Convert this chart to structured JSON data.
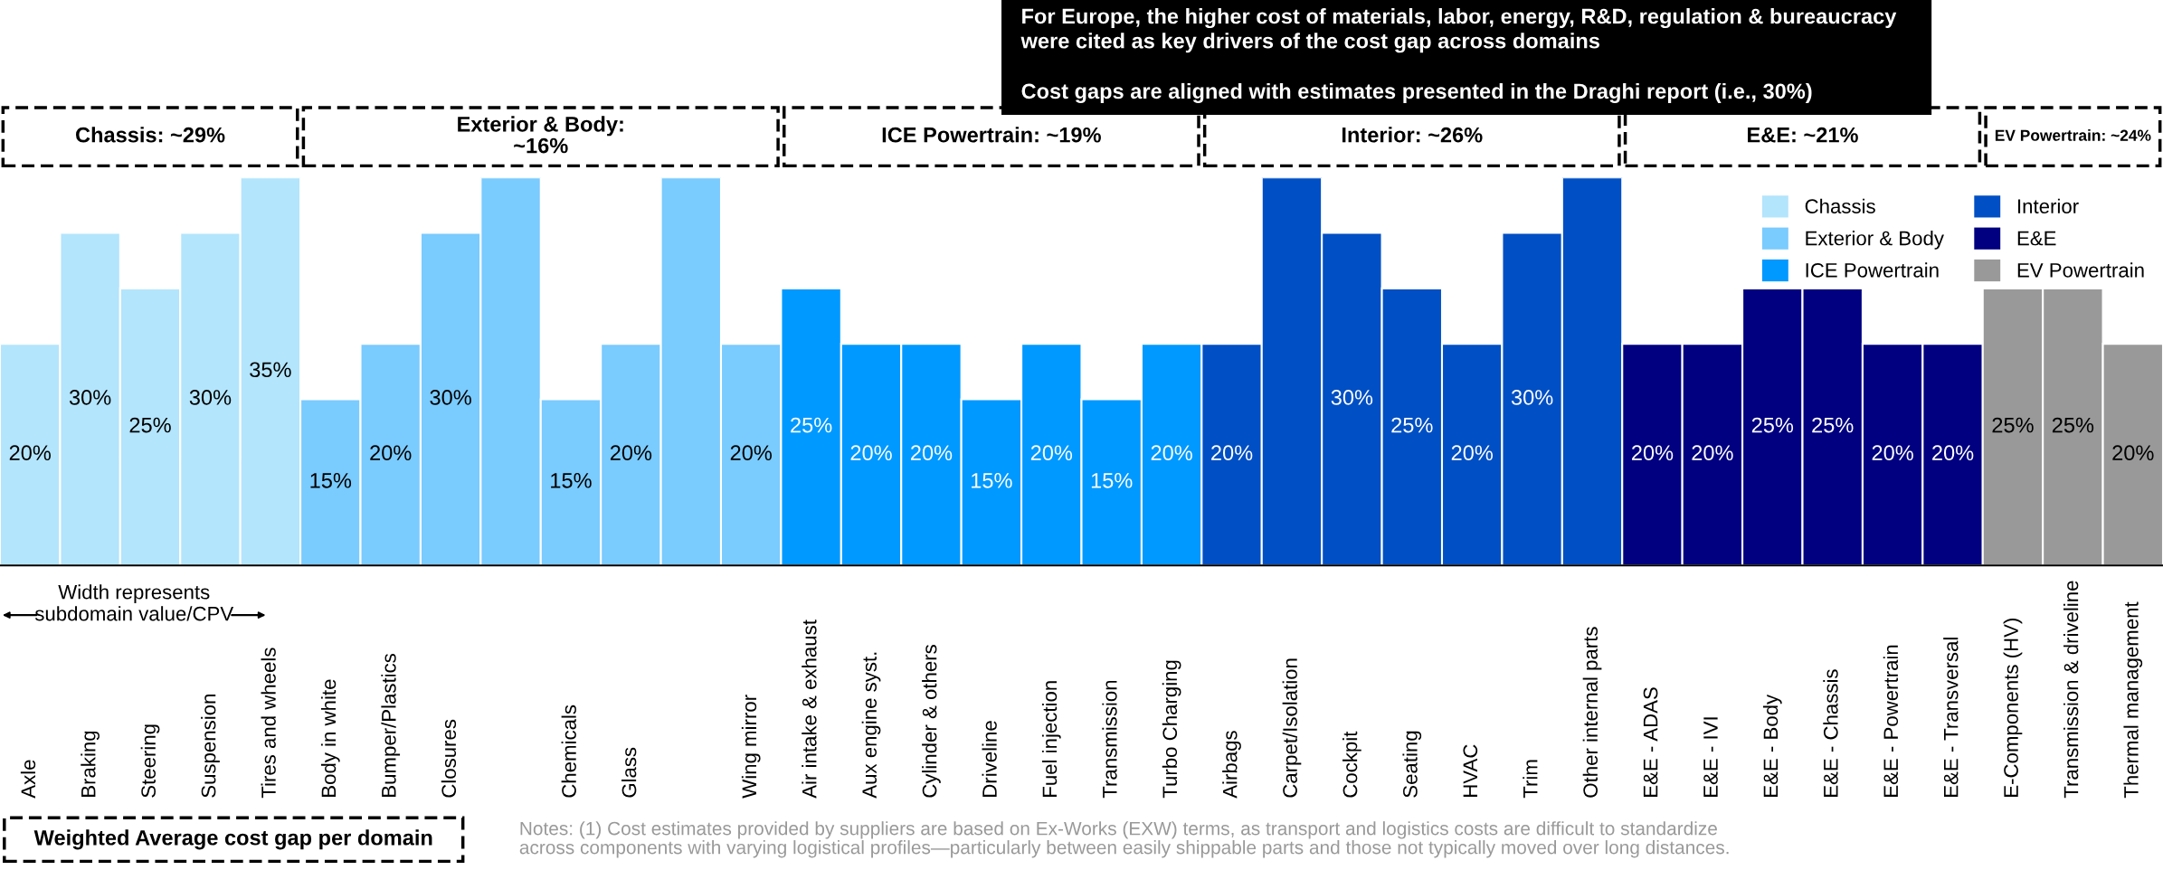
{
  "chart_data": {
    "type": "bar",
    "categories": [
      "Axle",
      "Braking",
      "Steering",
      "Suspension",
      "Tires and wheels",
      "Body in white",
      "Bumper/Plastics",
      "Closures",
      null,
      "Chemicals",
      "Glass",
      null,
      "Wing mirror",
      "Air intake & exhaust",
      "Aux engine syst.",
      "Cylinder & others",
      "Driveline",
      "Fuel injection",
      "Transmission",
      "Turbo Charging",
      "Airbags",
      "Carpet/Isolation",
      "Cockpit",
      "Seating",
      "HVAC",
      "Trim",
      "Other internal parts",
      "E&E - ADAS",
      "E&E - IVI",
      "E&E - Body",
      "E&E - Chassis",
      "E&E - Powertrain",
      "E&E - Transversal",
      "E-Components (HV)",
      "Transmission & driveline",
      "Thermal management"
    ],
    "series": [
      {
        "name": "Chassis",
        "color": "#b3e5fc",
        "values": [
          20,
          30,
          25,
          30,
          35,
          null,
          null,
          null,
          null,
          null,
          null,
          null,
          null,
          null,
          null,
          null,
          null,
          null,
          null,
          null,
          null,
          null,
          null,
          null,
          null,
          null,
          null,
          null,
          null,
          null,
          null,
          null,
          null,
          null,
          null,
          null
        ],
        "value_labels": [
          "20%",
          "30%",
          "25%",
          "30%",
          "35%",
          null,
          null,
          null,
          null,
          null,
          null,
          null,
          null,
          null,
          null,
          null,
          null,
          null,
          null,
          null,
          null,
          null,
          null,
          null,
          null,
          null,
          null,
          null,
          null,
          null,
          null,
          null,
          null,
          null,
          null,
          null
        ]
      },
      {
        "name": "Exterior & Body",
        "color": "#7acbfe",
        "values": [
          null,
          null,
          null,
          null,
          null,
          15,
          20,
          30,
          35,
          15,
          20,
          35,
          20,
          null,
          null,
          null,
          null,
          null,
          null,
          null,
          null,
          null,
          null,
          null,
          null,
          null,
          null,
          null,
          null,
          null,
          null,
          null,
          null,
          null,
          null,
          null
        ],
        "value_labels": [
          null,
          null,
          null,
          null,
          null,
          "15%",
          "20%",
          "30%",
          null,
          "15%",
          "20%",
          null,
          "20%",
          null,
          null,
          null,
          null,
          null,
          null,
          null,
          null,
          null,
          null,
          null,
          null,
          null,
          null,
          null,
          null,
          null,
          null,
          null,
          null,
          null,
          null,
          null
        ]
      },
      {
        "name": "ICE Powertrain",
        "color": "#0099ff",
        "values": [
          null,
          null,
          null,
          null,
          null,
          null,
          null,
          null,
          null,
          null,
          null,
          null,
          null,
          25,
          20,
          20,
          15,
          20,
          15,
          20,
          null,
          null,
          null,
          null,
          null,
          null,
          null,
          null,
          null,
          null,
          null,
          null,
          null,
          null,
          null,
          null
        ],
        "value_labels": [
          null,
          null,
          null,
          null,
          null,
          null,
          null,
          null,
          null,
          null,
          null,
          null,
          null,
          "25%",
          "20%",
          "20%",
          "15%",
          "20%",
          "15%",
          "20%",
          null,
          null,
          null,
          null,
          null,
          null,
          null,
          null,
          null,
          null,
          null,
          null,
          null,
          null,
          null,
          null
        ]
      },
      {
        "name": "Interior",
        "color": "#004fc4",
        "values": [
          null,
          null,
          null,
          null,
          null,
          null,
          null,
          null,
          null,
          null,
          null,
          null,
          null,
          null,
          null,
          null,
          null,
          null,
          null,
          null,
          20,
          35,
          30,
          25,
          20,
          30,
          35,
          null,
          null,
          null,
          null,
          null,
          null,
          null,
          null,
          null
        ],
        "value_labels": [
          null,
          null,
          null,
          null,
          null,
          null,
          null,
          null,
          null,
          null,
          null,
          null,
          null,
          null,
          null,
          null,
          null,
          null,
          null,
          null,
          "20%",
          null,
          "30%",
          "25%",
          "20%",
          "30%",
          null,
          null,
          null,
          null,
          null,
          null,
          null,
          null,
          null,
          null
        ]
      },
      {
        "name": "E&E",
        "color": "#000080",
        "values": [
          null,
          null,
          null,
          null,
          null,
          null,
          null,
          null,
          null,
          null,
          null,
          null,
          null,
          null,
          null,
          null,
          null,
          null,
          null,
          null,
          null,
          null,
          null,
          null,
          null,
          null,
          null,
          20,
          20,
          25,
          25,
          20,
          20,
          null,
          null,
          null
        ],
        "value_labels": [
          null,
          null,
          null,
          null,
          null,
          null,
          null,
          null,
          null,
          null,
          null,
          null,
          null,
          null,
          null,
          null,
          null,
          null,
          null,
          null,
          null,
          null,
          null,
          null,
          null,
          null,
          null,
          "20%",
          "20%",
          "25%",
          "25%",
          "20%",
          "20%",
          null,
          null,
          null
        ]
      },
      {
        "name": "EV Powertrain",
        "color": "#999999",
        "values": [
          null,
          null,
          null,
          null,
          null,
          null,
          null,
          null,
          null,
          null,
          null,
          null,
          null,
          null,
          null,
          null,
          null,
          null,
          null,
          null,
          null,
          null,
          null,
          null,
          null,
          null,
          null,
          null,
          null,
          null,
          null,
          null,
          null,
          25,
          25,
          20
        ],
        "value_labels": [
          null,
          null,
          null,
          null,
          null,
          null,
          null,
          null,
          null,
          null,
          null,
          null,
          null,
          null,
          null,
          null,
          null,
          null,
          null,
          null,
          null,
          null,
          null,
          null,
          null,
          null,
          null,
          null,
          null,
          null,
          null,
          null,
          null,
          "25%",
          "25%",
          "20%"
        ]
      }
    ],
    "annotations": [
      "Chassis: ~29%",
      "Exterior & Body:\n~16%",
      "ICE Powertrain: ~19%",
      "Interior: ~26%",
      "E&E: ~21%",
      "EV Powertrain: ~24%",
      "For Europe, the higher cost of materials, labor, energy, R&D, regulation & bureaucracy\nwere cited as key drivers of the cost gap across domains",
      "Cost gaps are aligned with estimates presented in the Draghi report (i.e., 30%)",
      "Width represents\nsubdomain value/CPV",
      "Weighted Average cost gap per domain",
      "Notes: (1) Cost estimates provided by suppliers are based on Ex-Works (EXW) terms, as transport and logistics costs are difficult to standardize\nacross components with varying logistical profiles—particularly between easily shippable parts and those not typically moved over long distances."
    ],
    "legend": "top right"
  }
}
